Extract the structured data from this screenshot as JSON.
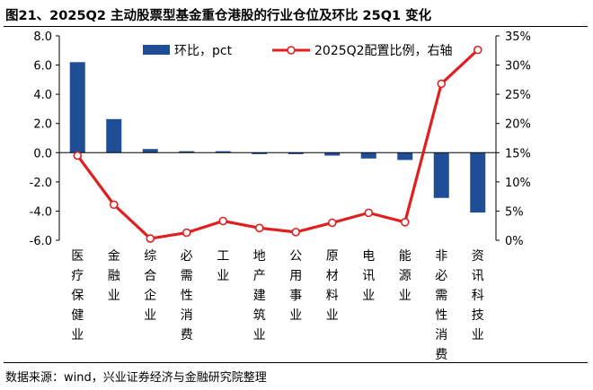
{
  "title": "图21、2025Q2 主动股票型基金重仓港股的行业仓位及环比 25Q1 变化",
  "source": "数据来源：wind，兴业证券经济与金融研究院整理",
  "colors": {
    "bar": "#1f4e96",
    "line": "#e02020",
    "marker_fill": "#ffffff"
  },
  "chart_data": {
    "type": "bar",
    "categories": [
      "医疗保健业",
      "金融业",
      "综合企业",
      "必需性消费",
      "工业",
      "地产建筑业",
      "公用事业",
      "原材料业",
      "电讯业",
      "能源业",
      "非必需性消费",
      "资讯科技业"
    ],
    "series": [
      {
        "name": "环比，pct",
        "type": "bar",
        "axis": "left",
        "values": [
          6.2,
          2.3,
          0.25,
          0.1,
          0.1,
          -0.1,
          -0.1,
          -0.2,
          -0.4,
          -0.5,
          -3.1,
          -4.1
        ]
      },
      {
        "name": "2025Q2配置比例，右轴",
        "type": "line",
        "axis": "right",
        "values": [
          14.5,
          6.1,
          0.3,
          1.3,
          3.3,
          2.1,
          1.4,
          3.0,
          4.7,
          3.1,
          26.8,
          32.6
        ]
      }
    ],
    "left_axis": {
      "ylim": [
        -6,
        8
      ],
      "ticks": [
        "-6.0",
        "-4.0",
        "-2.0",
        "0.0",
        "2.0",
        "4.0",
        "6.0",
        "8.0"
      ]
    },
    "right_axis": {
      "ylim": [
        0,
        35
      ],
      "ticks": [
        "0%",
        "5%",
        "10%",
        "15%",
        "20%",
        "25%",
        "30%",
        "35%"
      ]
    },
    "legend_position": "top-center",
    "grid": false
  }
}
